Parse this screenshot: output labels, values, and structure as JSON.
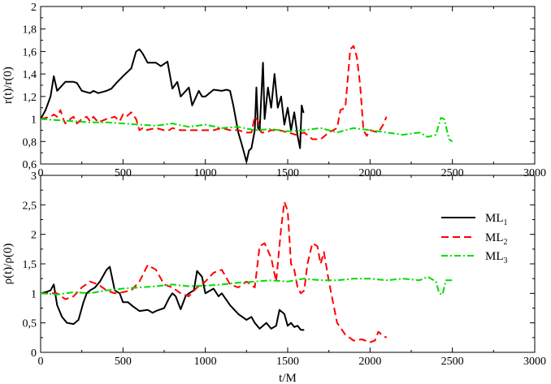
{
  "chart_data": [
    {
      "type": "line",
      "title": "",
      "xlabel": "",
      "ylabel": "r(t)/r(0)",
      "xlim": [
        0,
        3000
      ],
      "ylim": [
        0.6,
        2
      ],
      "xticks": [
        "0",
        "500",
        "1000",
        "1500",
        "2000",
        "2500",
        "3000"
      ],
      "yticks": [
        "0,6",
        "0,8",
        "1",
        "1,2",
        "1,4",
        "1,6",
        "1,8",
        "2"
      ],
      "grid": false,
      "series": [
        {
          "color": "#000000",
          "dash": "solid",
          "x": [
            0,
            30,
            60,
            80,
            100,
            150,
            200,
            220,
            250,
            300,
            320,
            350,
            400,
            430,
            460,
            500,
            550,
            580,
            600,
            620,
            650,
            700,
            730,
            770,
            800,
            830,
            850,
            900,
            920,
            960,
            980,
            1000,
            1050,
            1100,
            1130,
            1150,
            1170,
            1200,
            1220,
            1250,
            1265,
            1280,
            1300,
            1310,
            1320,
            1330,
            1350,
            1360,
            1380,
            1400,
            1420,
            1440,
            1460,
            1480,
            1500,
            1520,
            1540,
            1560,
            1575,
            1585,
            1595,
            1600
          ],
          "y": [
            1.0,
            1.08,
            1.2,
            1.38,
            1.25,
            1.33,
            1.33,
            1.32,
            1.25,
            1.23,
            1.25,
            1.23,
            1.25,
            1.27,
            1.32,
            1.38,
            1.45,
            1.6,
            1.62,
            1.58,
            1.5,
            1.5,
            1.47,
            1.51,
            1.27,
            1.33,
            1.2,
            1.28,
            1.12,
            1.25,
            1.2,
            1.2,
            1.26,
            1.25,
            1.26,
            1.25,
            1.12,
            0.88,
            0.78,
            0.62,
            0.72,
            0.74,
            0.9,
            1.28,
            0.92,
            0.9,
            1.5,
            1.0,
            1.28,
            1.1,
            1.4,
            1.1,
            1.2,
            0.95,
            1.1,
            0.9,
            1.06,
            0.85,
            0.74,
            1.12,
            1.06,
            1.06
          ]
        },
        {
          "color": "#ff0000",
          "dash": "dashed",
          "x": [
            0,
            60,
            80,
            100,
            120,
            140,
            150,
            180,
            200,
            220,
            250,
            280,
            300,
            320,
            350,
            400,
            450,
            480,
            500,
            520,
            550,
            580,
            600,
            620,
            640,
            700,
            750,
            780,
            800,
            850,
            900,
            950,
            1000,
            1050,
            1100,
            1150,
            1200,
            1250,
            1280,
            1300,
            1320,
            1340,
            1370,
            1400,
            1450,
            1500,
            1550,
            1600,
            1650,
            1700,
            1750,
            1800,
            1820,
            1850,
            1880,
            1900,
            1920,
            1940,
            1960,
            1980,
            2000,
            2050,
            2080,
            2100
          ],
          "y": [
            1.0,
            1.02,
            1.04,
            1.02,
            1.08,
            0.99,
            0.96,
            1.0,
            1.02,
            0.96,
            1.0,
            1.02,
            0.98,
            1.02,
            0.97,
            1.0,
            1.02,
            0.98,
            1.04,
            1.02,
            1.06,
            1.0,
            0.9,
            0.92,
            0.9,
            0.92,
            0.9,
            0.9,
            0.92,
            0.9,
            0.9,
            0.9,
            0.9,
            0.9,
            0.92,
            0.9,
            0.9,
            0.88,
            0.88,
            1.02,
            0.98,
            0.88,
            0.88,
            0.9,
            0.9,
            0.88,
            0.86,
            0.88,
            0.82,
            0.82,
            0.88,
            0.92,
            1.08,
            1.1,
            1.62,
            1.65,
            1.55,
            1.3,
            0.9,
            0.85,
            0.9,
            0.88,
            0.95,
            1.02
          ]
        },
        {
          "color": "#00dd00",
          "dash": "dashdot",
          "x": [
            0,
            100,
            200,
            300,
            400,
            500,
            600,
            700,
            800,
            900,
            1000,
            1100,
            1200,
            1300,
            1400,
            1500,
            1600,
            1700,
            1800,
            1900,
            2000,
            2100,
            2200,
            2300,
            2350,
            2400,
            2430,
            2450,
            2480,
            2500
          ],
          "y": [
            1.0,
            0.99,
            0.98,
            0.97,
            0.97,
            0.96,
            0.95,
            0.94,
            0.96,
            0.93,
            0.95,
            0.92,
            0.93,
            0.9,
            0.91,
            0.89,
            0.9,
            0.92,
            0.88,
            0.92,
            0.9,
            0.88,
            0.86,
            0.88,
            0.84,
            0.86,
            1.01,
            1.0,
            0.82,
            0.8
          ]
        }
      ]
    },
    {
      "type": "line",
      "title": "",
      "xlabel": "t/M",
      "ylabel": "ρ(t)/ρ(0)",
      "xlim": [
        0,
        3000
      ],
      "ylim": [
        0,
        3
      ],
      "xticks": [
        "0",
        "500",
        "1000",
        "1500",
        "2000",
        "2500",
        "3000"
      ],
      "yticks": [
        "0",
        "0,5",
        "1",
        "1,5",
        "2",
        "2,5",
        "3"
      ],
      "grid": false,
      "legend_position": "right",
      "series": [
        {
          "name": "ML1",
          "color": "#000000",
          "dash": "solid",
          "x": [
            0,
            30,
            60,
            80,
            100,
            130,
            160,
            200,
            230,
            260,
            280,
            300,
            330,
            360,
            400,
            420,
            450,
            480,
            500,
            530,
            560,
            600,
            650,
            680,
            700,
            750,
            780,
            800,
            820,
            850,
            880,
            900,
            930,
            950,
            980,
            1000,
            1050,
            1080,
            1100,
            1150,
            1200,
            1250,
            1280,
            1300,
            1330,
            1370,
            1400,
            1430,
            1450,
            1480,
            1500,
            1520,
            1540,
            1560,
            1580,
            1600
          ],
          "y": [
            1.0,
            1.02,
            1.05,
            1.15,
            0.8,
            0.6,
            0.5,
            0.48,
            0.55,
            0.85,
            1.0,
            1.05,
            1.1,
            1.2,
            1.4,
            1.45,
            1.05,
            1.0,
            0.85,
            0.85,
            0.78,
            0.7,
            0.72,
            0.67,
            0.7,
            0.75,
            0.92,
            1.0,
            0.95,
            0.73,
            0.95,
            1.0,
            1.05,
            1.38,
            1.28,
            1.0,
            1.08,
            0.95,
            1.0,
            0.8,
            0.65,
            0.55,
            0.6,
            0.5,
            0.4,
            0.5,
            0.4,
            0.45,
            0.72,
            0.65,
            0.45,
            0.5,
            0.43,
            0.45,
            0.38,
            0.38
          ]
        },
        {
          "name": "ML2",
          "color": "#ff0000",
          "dash": "dashed",
          "x": [
            0,
            100,
            150,
            200,
            250,
            300,
            350,
            400,
            450,
            500,
            550,
            600,
            650,
            700,
            750,
            800,
            850,
            900,
            950,
            1000,
            1050,
            1100,
            1150,
            1200,
            1250,
            1300,
            1330,
            1360,
            1400,
            1430,
            1460,
            1480,
            1500,
            1520,
            1540,
            1560,
            1580,
            1600,
            1620,
            1650,
            1680,
            1700,
            1720,
            1750,
            1800,
            1850,
            1900,
            1950,
            2000,
            2030,
            2050,
            2080,
            2100
          ],
          "y": [
            1.0,
            1.0,
            0.9,
            0.95,
            1.1,
            1.2,
            1.15,
            1.05,
            1.0,
            1.02,
            1.05,
            1.2,
            1.48,
            1.4,
            1.15,
            1.1,
            1.0,
            0.95,
            1.1,
            1.2,
            1.35,
            1.4,
            1.15,
            1.1,
            1.2,
            1.1,
            1.8,
            1.85,
            1.6,
            1.2,
            2.1,
            2.55,
            2.4,
            1.5,
            1.4,
            1.1,
            1.0,
            1.05,
            1.5,
            1.85,
            1.8,
            1.5,
            1.7,
            1.2,
            0.5,
            0.3,
            0.2,
            0.22,
            0.17,
            0.2,
            0.35,
            0.28,
            0.25
          ]
        },
        {
          "name": "ML3",
          "color": "#00dd00",
          "dash": "dashdot",
          "x": [
            0,
            100,
            200,
            300,
            400,
            500,
            600,
            700,
            800,
            900,
            1000,
            1100,
            1200,
            1300,
            1400,
            1500,
            1600,
            1700,
            1800,
            1900,
            2000,
            2100,
            2200,
            2300,
            2350,
            2400,
            2420,
            2440,
            2460,
            2500
          ],
          "y": [
            1.0,
            0.98,
            1.02,
            1.0,
            1.05,
            1.08,
            1.1,
            1.12,
            1.15,
            1.12,
            1.13,
            1.15,
            1.18,
            1.2,
            1.22,
            1.2,
            1.25,
            1.22,
            1.22,
            1.25,
            1.25,
            1.22,
            1.25,
            1.22,
            1.28,
            1.2,
            1.0,
            0.98,
            1.22,
            1.22
          ]
        }
      ]
    }
  ],
  "legend": {
    "entries": [
      {
        "base": "ML",
        "sub": "1"
      },
      {
        "base": "ML",
        "sub": "2"
      },
      {
        "base": "ML",
        "sub": "3"
      }
    ]
  }
}
